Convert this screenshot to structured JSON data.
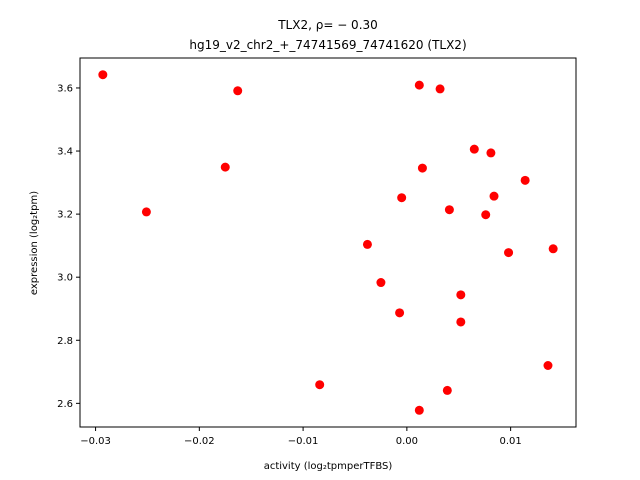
{
  "chart_data": {
    "type": "scatter",
    "title_line1": "TLX2, ρ= − 0.30",
    "title_line2": "hg19_v2_chr2_+_74741569_74741620 (TLX2)",
    "xlabel": "activity (log₂tpmperTFBS)",
    "ylabel": "expression (log₂tpm)",
    "xlim": [
      -0.0315,
      0.0163
    ],
    "ylim": [
      2.525,
      3.695
    ],
    "xticks": [
      -0.03,
      -0.02,
      -0.01,
      0.0,
      0.01
    ],
    "xtick_labels": [
      "−0.03",
      "−0.02",
      "−0.01",
      "0.00",
      "0.01"
    ],
    "yticks": [
      2.6,
      2.8,
      3.0,
      3.2,
      3.4,
      3.6
    ],
    "ytick_labels": [
      "2.6",
      "2.8",
      "3.0",
      "3.2",
      "3.4",
      "3.6"
    ],
    "point_color": "#ff0000",
    "points": [
      {
        "x": -0.0293,
        "y": 3.642
      },
      {
        "x": -0.0163,
        "y": 3.591
      },
      {
        "x": -0.0175,
        "y": 3.349
      },
      {
        "x": -0.0251,
        "y": 3.207
      },
      {
        "x": -0.0084,
        "y": 2.659
      },
      {
        "x": -0.0038,
        "y": 3.104
      },
      {
        "x": -0.0025,
        "y": 2.983
      },
      {
        "x": -0.0007,
        "y": 2.887
      },
      {
        "x": -0.0005,
        "y": 3.252
      },
      {
        "x": 0.0012,
        "y": 3.609
      },
      {
        "x": 0.0015,
        "y": 3.346
      },
      {
        "x": 0.0012,
        "y": 2.578
      },
      {
        "x": 0.0032,
        "y": 3.597
      },
      {
        "x": 0.0039,
        "y": 2.641
      },
      {
        "x": 0.0041,
        "y": 3.214
      },
      {
        "x": 0.0052,
        "y": 2.944
      },
      {
        "x": 0.0052,
        "y": 2.858
      },
      {
        "x": 0.0065,
        "y": 3.406
      },
      {
        "x": 0.0076,
        "y": 3.198
      },
      {
        "x": 0.0081,
        "y": 3.394
      },
      {
        "x": 0.0084,
        "y": 3.257
      },
      {
        "x": 0.0098,
        "y": 3.078
      },
      {
        "x": 0.0114,
        "y": 3.307
      },
      {
        "x": 0.0136,
        "y": 2.72
      },
      {
        "x": 0.0141,
        "y": 3.09
      }
    ]
  }
}
